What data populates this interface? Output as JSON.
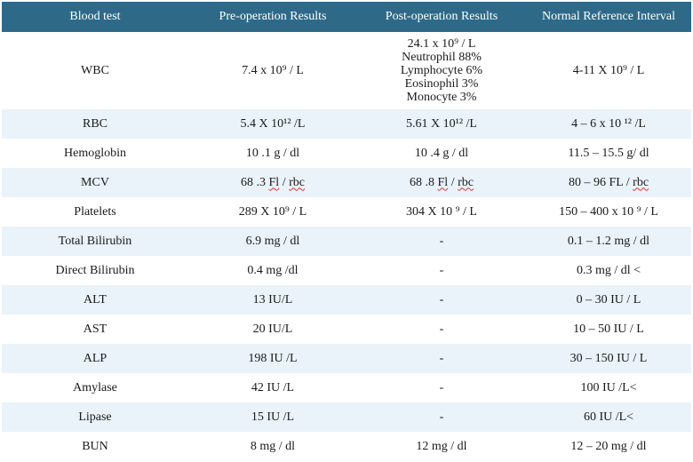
{
  "headers": [
    "Blood test",
    "Pre-operation Results",
    "Post-operation Results",
    "Normal Reference Interval"
  ],
  "wbc": {
    "test": "WBC",
    "pre": "7.4 x 10⁹   / L",
    "post_lines": [
      "24.1 x 10⁹   / L",
      "Neutrophil 88%",
      "Lymphocyte 6%",
      "Eosinophil 3%",
      "Monocyte 3%"
    ],
    "normal": "4-11 X 10⁹ / L"
  },
  "rows": [
    {
      "test": "RBC",
      "pre": "5.4 X 10¹² /L",
      "post": "5.61 X 10¹² /L",
      "normal": "4 – 6 x 10  ¹² /L"
    },
    {
      "test": "Hemoglobin",
      "pre": "10 .1 g / dl",
      "post": "10 .4 g / dl",
      "normal": "11.5 – 15.5 g/ dl"
    },
    {
      "test": "MCV",
      "pre": "68 .3 Fl / rbc",
      "post": "68 .8 Fl / rbc",
      "normal": "80 – 96 FL / rbc"
    },
    {
      "test": "Platelets",
      "pre": "289 X 10⁹ / L",
      "post": "304 X 10  ⁹ / L",
      "normal": "150 – 400 x 10  ⁹ / L"
    },
    {
      "test": "Total Bilirubin",
      "pre": "6.9 mg / dl",
      "post": "-",
      "normal": "0.1 – 1.2 mg / dl"
    },
    {
      "test": "Direct Bilirubin",
      "pre": "0.4 mg /dl",
      "post": "-",
      "normal": "0.3 mg / dl <"
    },
    {
      "test": "ALT",
      "pre": "13 IU/L",
      "post": "-",
      "normal": "0 – 30 IU / L"
    },
    {
      "test": "AST",
      "pre": "20 IU/L",
      "post": "-",
      "normal": "10 – 50 IU / L"
    },
    {
      "test": "ALP",
      "pre": "198 IU /L",
      "post": "-",
      "normal": "30 – 150 IU / L"
    },
    {
      "test": "Amylase",
      "pre": "42 IU /L",
      "post": "-",
      "normal": "100 IU /L<"
    },
    {
      "test": "Lipase",
      "pre": "15 IU /L",
      "post": "-",
      "normal": "60 IU /L<"
    },
    {
      "test": "BUN",
      "pre": "8 mg / dl",
      "post": "12 mg / dl",
      "normal": "12 – 20 mg / dl"
    }
  ]
}
